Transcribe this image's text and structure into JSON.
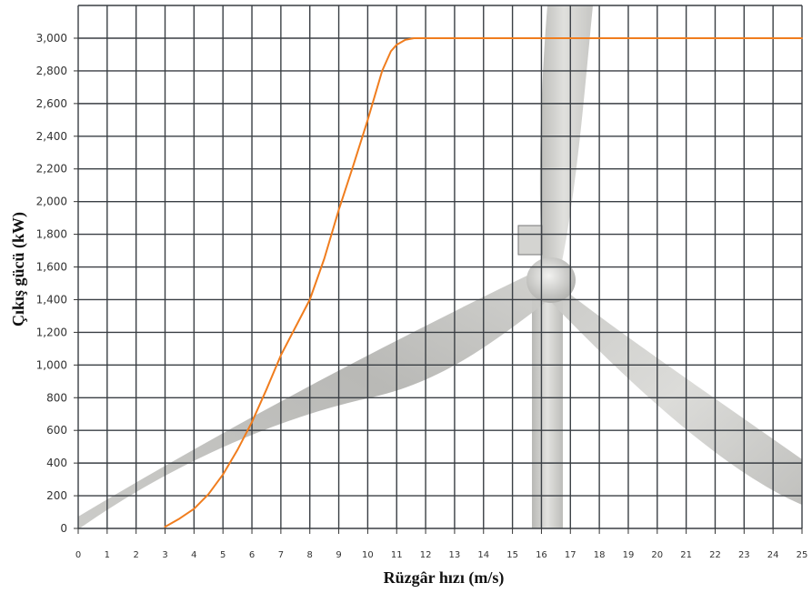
{
  "chart_data": {
    "type": "line",
    "title": "",
    "xlabel": "Rüzgâr hızı (m/s)",
    "ylabel": "Çıkış gücü (kW)",
    "xlim": [
      0,
      25
    ],
    "ylim": [
      0,
      3000
    ],
    "x_ticks": [
      "0",
      "1",
      "2",
      "3",
      "4",
      "5",
      "6",
      "7",
      "8",
      "9",
      "10",
      "11",
      "12",
      "13",
      "14",
      "15",
      "16",
      "17",
      "18",
      "19",
      "20",
      "21",
      "22",
      "23",
      "24",
      "25"
    ],
    "y_ticks": [
      "0",
      "200",
      "400",
      "600",
      "800",
      "1,000",
      "1,200",
      "1,400",
      "1,600",
      "1,800",
      "2,000",
      "2,200",
      "2,400",
      "2,600",
      "2,800",
      "3,000"
    ],
    "grid": true,
    "background": "wind turbine photograph",
    "series": [
      {
        "color": "#f07d1e",
        "x": [
          3,
          3.5,
          4,
          4.5,
          5,
          5.5,
          6,
          6.5,
          7,
          7.5,
          8,
          8.5,
          9,
          9.5,
          10,
          10.5,
          10.8,
          11,
          11.3,
          11.6,
          12,
          13,
          14,
          15,
          16,
          17,
          18,
          19,
          20,
          21,
          22,
          23,
          24,
          25
        ],
        "y": [
          10,
          60,
          120,
          210,
          330,
          480,
          650,
          850,
          1060,
          1230,
          1400,
          1650,
          1950,
          2220,
          2500,
          2800,
          2920,
          2960,
          2990,
          3000,
          3000,
          3000,
          3000,
          3000,
          3000,
          3000,
          3000,
          3000,
          3000,
          3000,
          3000,
          3000,
          3000,
          3000
        ]
      }
    ]
  }
}
